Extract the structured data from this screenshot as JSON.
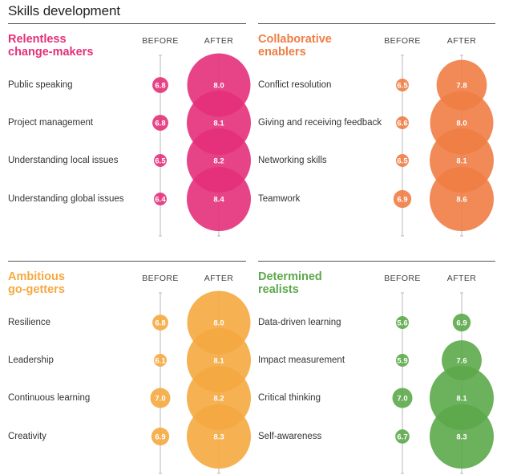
{
  "page_title": "Skills development",
  "chart_data": [
    {
      "type": "bubble",
      "title_lines": [
        "Relentless",
        "change-makers"
      ],
      "color": "#e4307a",
      "before_label": "BEFORE",
      "after_label": "AFTER",
      "skills": [
        {
          "label": "Public speaking",
          "before": "6.8",
          "after": "8.0"
        },
        {
          "label": "Project management",
          "before": "6.8",
          "after": "8.1"
        },
        {
          "label": "Understanding local issues",
          "before": "6.5",
          "after": "8.2"
        },
        {
          "label": "Understanding global issues",
          "before": "6.4",
          "after": "8.4"
        }
      ]
    },
    {
      "type": "bubble",
      "title_lines": [
        "Collaborative",
        "enablers"
      ],
      "color": "#f07d45",
      "before_label": "BEFORE",
      "after_label": "AFTER",
      "skills": [
        {
          "label": "Conflict resolution",
          "before": "6.5",
          "after": "7.8"
        },
        {
          "label": "Giving and receiving feedback",
          "before": "6.6",
          "after": "8.0"
        },
        {
          "label": "Networking skills",
          "before": "6.5",
          "after": "8.1"
        },
        {
          "label": "Teamwork",
          "before": "6.9",
          "after": "8.6"
        }
      ]
    },
    {
      "type": "bubble",
      "title_lines": [
        "Ambitious",
        "go-getters"
      ],
      "color": "#f5a940",
      "before_label": "BEFORE",
      "after_label": "AFTER",
      "skills": [
        {
          "label": "Resilience",
          "before": "6.8",
          "after": "8.0"
        },
        {
          "label": "Leadership",
          "before": "6.1",
          "after": "8.1"
        },
        {
          "label": "Continuous learning",
          "before": "7.0",
          "after": "8.2"
        },
        {
          "label": "Creativity",
          "before": "6.9",
          "after": "8.3"
        }
      ]
    },
    {
      "type": "bubble",
      "title_lines": [
        "Determined",
        "realists"
      ],
      "color": "#5ca84a",
      "before_label": "BEFORE",
      "after_label": "AFTER",
      "skills": [
        {
          "label": "Data-driven learning",
          "before": "5.6",
          "after": "6.9"
        },
        {
          "label": "Impact measurement",
          "before": "5.9",
          "after": "7.6"
        },
        {
          "label": "Critical thinking",
          "before": "7.0",
          "after": "8.1"
        },
        {
          "label": "Self-awareness",
          "before": "6.7",
          "after": "8.3"
        }
      ]
    }
  ]
}
